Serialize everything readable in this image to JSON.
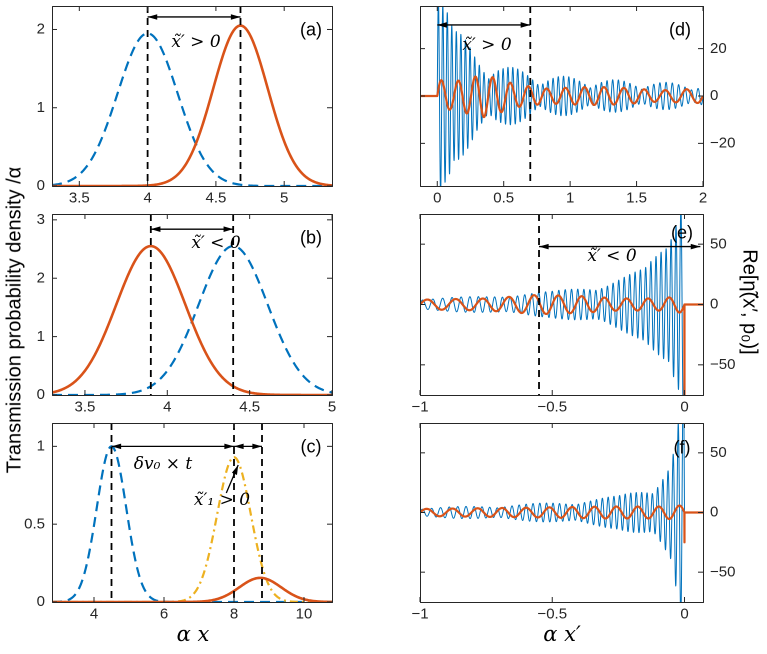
{
  "labels": {
    "ylabel_left": "Transmission probability density /α",
    "ylabel_right": "Re[η̃(x′, p₀)]",
    "xlabel_left": "α x",
    "xlabel_right": "α x′"
  },
  "colors": {
    "blue": "#0072BD",
    "red": "#D95319",
    "yellow": "#EDB120",
    "axes": "#262626"
  },
  "chart_data": [
    {
      "id": "a",
      "type": "line",
      "panel_label": "(a)",
      "annotation": "x̃′ > 0",
      "xlim": [
        3.3,
        5.35
      ],
      "ylim": [
        0,
        2.3
      ],
      "xticks": [
        3.5,
        4,
        4.5,
        5
      ],
      "yticks": [
        0,
        1,
        2
      ],
      "ytick_side": "left",
      "series": [
        {
          "name": "incident-packet",
          "shape": "gaussian",
          "center": 4.0,
          "sigma": 0.22,
          "amp": 1.95,
          "color": "#0072BD",
          "dash": [
            10,
            6
          ],
          "lw": 2.2
        },
        {
          "name": "transmitted-packet",
          "shape": "gaussian",
          "center": 4.68,
          "sigma": 0.2,
          "amp": 2.05,
          "color": "#D95319",
          "dash": [],
          "lw": 2.6
        }
      ],
      "vlines": [
        4.0,
        4.68
      ],
      "arrows": [
        {
          "y": 2.16,
          "x1": 4.0,
          "x2": 4.68,
          "heads": "both"
        }
      ]
    },
    {
      "id": "b",
      "type": "line",
      "panel_label": "(b)",
      "annotation": "x̃′ < 0",
      "xlim": [
        3.3,
        5.0
      ],
      "ylim": [
        0,
        3.1
      ],
      "xticks": [
        3.5,
        4,
        4.5,
        5
      ],
      "yticks": [
        0,
        1,
        2,
        3
      ],
      "ytick_side": "left",
      "series": [
        {
          "name": "incident-packet",
          "shape": "gaussian",
          "center": 4.4,
          "sigma": 0.21,
          "amp": 2.55,
          "color": "#0072BD",
          "dash": [
            10,
            6
          ],
          "lw": 2.2
        },
        {
          "name": "transmitted-packet",
          "shape": "gaussian",
          "center": 3.9,
          "sigma": 0.21,
          "amp": 2.55,
          "color": "#D95319",
          "dash": [],
          "lw": 2.6
        }
      ],
      "vlines": [
        3.9,
        4.4
      ],
      "arrows": [
        {
          "y": 2.84,
          "x1": 3.9,
          "x2": 4.4,
          "heads": "both"
        }
      ]
    },
    {
      "id": "c",
      "type": "line",
      "panel_label": "(c)",
      "arrow_label": "δv₀ × t",
      "annotation": "x̃′₁ > 0",
      "xlim": [
        2.8,
        10.8
      ],
      "ylim": [
        0,
        1.15
      ],
      "xticks": [
        4,
        6,
        8,
        10
      ],
      "yticks": [
        0,
        0.5,
        1
      ],
      "ytick_side": "left",
      "series": [
        {
          "name": "initial-packet",
          "shape": "gaussian",
          "center": 4.5,
          "sigma": 0.42,
          "amp": 1.0,
          "color": "#0072BD",
          "dash": [
            10,
            6
          ],
          "lw": 2.2
        },
        {
          "name": "free-propagated-packet",
          "shape": "gaussian",
          "center": 8.0,
          "sigma": 0.48,
          "amp": 0.93,
          "color": "#EDB120",
          "dash": [
            8,
            4,
            2,
            4
          ],
          "lw": 2.2
        },
        {
          "name": "transmitted-packet",
          "shape": "gaussian",
          "center": 8.75,
          "sigma": 0.6,
          "amp": 0.155,
          "color": "#D95319",
          "dash": [],
          "lw": 2.6
        }
      ],
      "vlines": [
        4.5,
        8.0,
        8.8
      ],
      "arrows": [
        {
          "y": 1.0,
          "x1": 4.5,
          "x2": 8.0,
          "heads": "both"
        },
        {
          "y": 1.0,
          "x1": 8.0,
          "x2": 8.8,
          "heads": "both"
        },
        {
          "from": [
            7.78,
            0.7
          ],
          "to": [
            8.12,
            0.88
          ],
          "heads": "end"
        }
      ]
    },
    {
      "id": "d",
      "type": "line",
      "panel_label": "(d)",
      "annotation": "x̃′ > 0",
      "xlim": [
        -0.13,
        2.0
      ],
      "ylim": [
        -38,
        38
      ],
      "xticks": [
        0,
        0.5,
        1,
        1.5,
        2
      ],
      "yticks": [
        -20,
        0,
        20
      ],
      "ytick_side": "right",
      "series": [
        {
          "name": "re-eta-oscillatory",
          "shape": "osc",
          "range": [
            -0.13,
            2.0
          ],
          "support": [
            0,
            2.0
          ],
          "envelope": [
            [
              0,
              90
            ],
            [
              0.05,
              55
            ],
            [
              0.12,
              30
            ],
            [
              0.3,
              18
            ],
            [
              0.5,
              13
            ],
            [
              0.8,
              9
            ],
            [
              1.3,
              7
            ],
            [
              2,
              5
            ]
          ],
          "f0": 30,
          "chirp": -5,
          "beat": {
            "f": 2.6,
            "depth": 0.55
          },
          "color": "#0072BD",
          "lw": 1
        },
        {
          "name": "re-eta-smoothed",
          "shape": "osc",
          "range": [
            -0.13,
            2.0
          ],
          "support": [
            0,
            2.0
          ],
          "envelope": [
            [
              0,
              10
            ],
            [
              0.1,
              7
            ],
            [
              0.35,
              9
            ],
            [
              0.6,
              5
            ],
            [
              1,
              4
            ],
            [
              2,
              3
            ]
          ],
          "f0": 8,
          "chirp": -1,
          "beat": {
            "f": 1.2,
            "depth": 0.3
          },
          "color": "#D95319",
          "lw": 2.2
        }
      ],
      "vlines": [
        0.7
      ],
      "arrows": [
        {
          "y": 30,
          "x1": 0.0,
          "x2": 0.7,
          "heads": "both"
        }
      ]
    },
    {
      "id": "e",
      "type": "line",
      "panel_label": "(e)",
      "annotation": "x̃′ < 0",
      "xlim": [
        -1.0,
        0.07
      ],
      "ylim": [
        -75,
        75
      ],
      "xticks": [
        -1,
        -0.5,
        0
      ],
      "yticks": [
        -50,
        0,
        50
      ],
      "ytick_side": "right",
      "series": [
        {
          "name": "re-eta-oscillatory",
          "shape": "osc",
          "range": [
            -1.0,
            0.07
          ],
          "support": [
            -1.0,
            0
          ],
          "envelope": [
            [
              -1,
              5
            ],
            [
              -0.75,
              7
            ],
            [
              -0.5,
              11
            ],
            [
              -0.3,
              18
            ],
            [
              -0.15,
              30
            ],
            [
              -0.06,
              55
            ],
            [
              -0.02,
              95
            ],
            [
              0,
              140
            ]
          ],
          "f0": 25,
          "chirp": 30,
          "beat": {
            "f": 3,
            "depth": 0.3
          },
          "color": "#0072BD",
          "lw": 1
        },
        {
          "name": "re-eta-smoothed",
          "shape": "osc",
          "range": [
            -1.0,
            0.07
          ],
          "support": [
            -1.0,
            0
          ],
          "envelope": [
            [
              -1,
              4
            ],
            [
              -0.75,
              5
            ],
            [
              -0.55,
              8
            ],
            [
              -0.4,
              7
            ],
            [
              -0.25,
              5
            ],
            [
              -0.1,
              5
            ],
            [
              0,
              7
            ]
          ],
          "f0": 9,
          "chirp": 4,
          "post_drop": -85,
          "color": "#D95319",
          "lw": 2.2
        }
      ],
      "vlines": [
        -0.55
      ],
      "arrows": [
        {
          "y": 48,
          "x1": -0.55,
          "x2": 0.06,
          "heads": "both"
        }
      ]
    },
    {
      "id": "f",
      "type": "line",
      "panel_label": "(f)",
      "xlim": [
        -1.0,
        0.07
      ],
      "ylim": [
        -75,
        75
      ],
      "xticks": [
        -1,
        -0.5,
        0
      ],
      "yticks": [
        -50,
        0,
        50
      ],
      "ytick_side": "right",
      "series": [
        {
          "name": "re-eta-oscillatory",
          "shape": "osc",
          "range": [
            -1.0,
            0.07
          ],
          "support": [
            -1.0,
            0
          ],
          "envelope": [
            [
              -1,
              4
            ],
            [
              -0.7,
              6
            ],
            [
              -0.45,
              9
            ],
            [
              -0.25,
              14
            ],
            [
              -0.12,
              24
            ],
            [
              -0.05,
              45
            ],
            [
              -0.015,
              90
            ],
            [
              0,
              130
            ]
          ],
          "f0": 28,
          "chirp": 25,
          "beat": {
            "f": 3.4,
            "depth": 0.35
          },
          "color": "#0072BD",
          "lw": 1
        },
        {
          "name": "re-eta-smoothed",
          "shape": "osc",
          "range": [
            -1.0,
            0.07
          ],
          "support": [
            -1.0,
            0
          ],
          "envelope": [
            [
              -1,
              3
            ],
            [
              -0.6,
              4
            ],
            [
              -0.3,
              5
            ],
            [
              -0.1,
              5
            ],
            [
              0,
              6
            ]
          ],
          "f0": 10,
          "chirp": 3,
          "post_drop": -25,
          "color": "#D95319",
          "lw": 2.2
        }
      ],
      "vlines": [],
      "arrows": []
    }
  ]
}
